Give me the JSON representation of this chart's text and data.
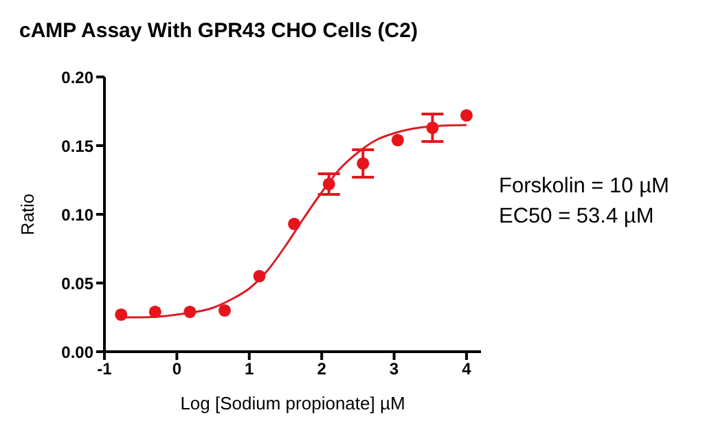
{
  "chart_data": {
    "type": "scatter",
    "title": "cAMP Assay With GPR43 CHO Cells (C2)",
    "xlabel": "Log [Sodium propionate] µM",
    "ylabel": "Ratio",
    "xlim": [
      -1,
      4.2
    ],
    "xticks": [
      -1,
      0,
      1,
      2,
      3,
      4
    ],
    "ylim": [
      0,
      0.2
    ],
    "yticks": [
      {
        "value": 0,
        "label": "0.00"
      },
      {
        "value": 0.05,
        "label": "0.05"
      },
      {
        "value": 0.1,
        "label": "0.10"
      },
      {
        "value": 0.15,
        "label": "0.15"
      },
      {
        "value": 0.2,
        "label": "0.20"
      }
    ],
    "marker": "circle",
    "series": [
      {
        "color": "#e8141c",
        "x": [
          -0.77,
          -0.3,
          0.18,
          0.66,
          1.14,
          1.62,
          2.1,
          2.57,
          3.05,
          3.53,
          4.0
        ],
        "values": [
          0.027,
          0.029,
          0.029,
          0.03,
          0.055,
          0.093,
          0.122,
          0.137,
          0.154,
          0.163,
          0.172
        ],
        "errors": [
          null,
          null,
          null,
          null,
          null,
          null,
          0.0075,
          0.01,
          null,
          0.01,
          null
        ]
      },
      {
        "type": "line",
        "marker": "none",
        "color": "#d81e24",
        "line_style": "solid",
        "x": [
          -0.77,
          -0.5,
          0,
          0.5,
          0.75,
          1,
          1.25,
          1.5,
          1.75,
          2,
          2.25,
          2.5,
          2.75,
          3,
          3.5,
          4
        ],
        "values": [
          0.025,
          0.025,
          0.027,
          0.032,
          0.038,
          0.046,
          0.059,
          0.077,
          0.097,
          0.116,
          0.133,
          0.145,
          0.154,
          0.159,
          0.164,
          0.165
        ]
      }
    ],
    "annotations": [
      "Forskolin = 10 µM",
      "EC50 = 53.4 µM"
    ]
  }
}
